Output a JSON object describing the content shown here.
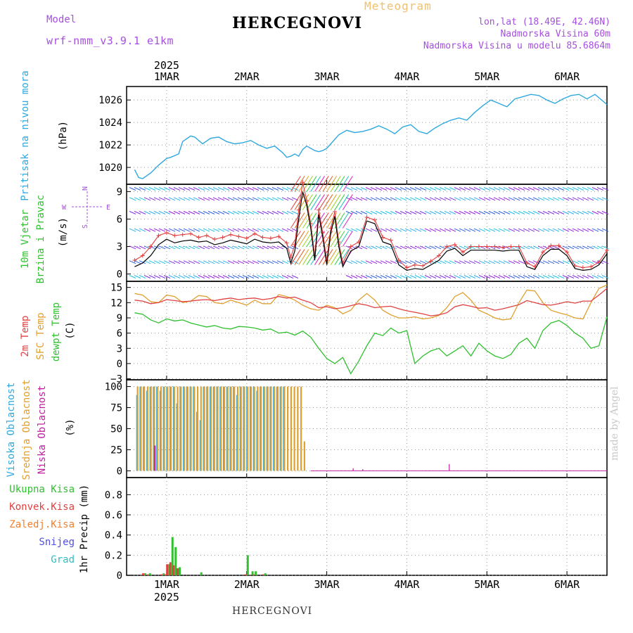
{
  "header": {
    "model_label": "Model",
    "model_name": "wrf-nmm_v3.9.1 e1km",
    "meteogram_label": "Meteogram",
    "station": "HERCEGNOVI",
    "lonlat": "lon,lat (18.49E, 42.46N)",
    "elevation": "Nadmorska Visina 60m",
    "model_elevation": "Nadmorska Visina u modelu 85.6864m",
    "footer_station": "HERCEGNOVI",
    "credit": "made by Angel"
  },
  "time_axis": {
    "year": "2025",
    "days": [
      "1MAR",
      "2MAR",
      "3MAR",
      "4MAR",
      "5MAR",
      "6MAR"
    ]
  },
  "colors": {
    "pressure": "#2fa8e0",
    "wind_speed": "#000000",
    "wind_gust": "#e04040",
    "temp_2m": "#e04040",
    "temp_sfc": "#e0a030",
    "dewpoint": "#30c030",
    "cloud_high": "#2fa8e0",
    "cloud_mid": "#e0a030",
    "cloud_low": "#c020a0",
    "precip_total": "#30c030",
    "precip_conv": "#e04040",
    "precip_frz": "#f08030",
    "snow": "#5050e0",
    "hail": "#30c0c0"
  },
  "chart_data": [
    {
      "type": "line",
      "panel": "pressure",
      "ylabel_lines": [
        "Pritisak na nivou mora",
        "(hPa)"
      ],
      "ylim": [
        1018.5,
        1027.2
      ],
      "yticks": [
        1020,
        1022,
        1024,
        1026
      ],
      "x_days": [
        0.6,
        0.65,
        0.7,
        0.8,
        0.9,
        1.0,
        1.05,
        1.15,
        1.2,
        1.3,
        1.35,
        1.45,
        1.55,
        1.65,
        1.75,
        1.85,
        1.95,
        2.05,
        2.15,
        2.25,
        2.35,
        2.45,
        2.5,
        2.55,
        2.6,
        2.65,
        2.7,
        2.75,
        2.8,
        2.85,
        2.9,
        2.95,
        3.0,
        3.05,
        3.15,
        3.25,
        3.35,
        3.45,
        3.55,
        3.65,
        3.75,
        3.85,
        3.95,
        4.05,
        4.15,
        4.25,
        4.35,
        4.45,
        4.55,
        4.65,
        4.75,
        4.85,
        4.95,
        5.05,
        5.15,
        5.25,
        5.35,
        5.45,
        5.55,
        5.65,
        5.75,
        5.85,
        5.95,
        6.05,
        6.15,
        6.25,
        6.35,
        6.5
      ],
      "y": [
        1019.8,
        1019.1,
        1019.0,
        1019.5,
        1020.2,
        1020.8,
        1020.9,
        1021.2,
        1022.3,
        1022.8,
        1022.7,
        1022.1,
        1022.6,
        1022.7,
        1022.3,
        1022.1,
        1022.2,
        1022.4,
        1022.0,
        1021.7,
        1021.9,
        1021.3,
        1020.9,
        1021.0,
        1021.2,
        1021.0,
        1021.6,
        1021.9,
        1021.7,
        1021.5,
        1021.4,
        1021.5,
        1021.7,
        1022.1,
        1022.9,
        1023.3,
        1023.1,
        1023.2,
        1023.4,
        1023.7,
        1023.4,
        1023.0,
        1023.6,
        1023.8,
        1023.2,
        1023.0,
        1023.5,
        1023.9,
        1024.2,
        1024.4,
        1024.2,
        1024.9,
        1025.5,
        1026.0,
        1025.7,
        1025.4,
        1026.1,
        1026.3,
        1026.5,
        1026.4,
        1026.0,
        1025.7,
        1026.1,
        1026.4,
        1026.5,
        1026.1,
        1026.5,
        1025.6
      ],
      "series_color": "#2fa8e0"
    },
    {
      "type": "line",
      "panel": "wind",
      "ylabel_lines": [
        "10m Vjetar",
        "Brzina i Pravac",
        "(m/s)"
      ],
      "direction_key": [
        "N",
        "S",
        "W",
        "E"
      ],
      "ylim": [
        -0.8,
        9.8
      ],
      "yticks": [
        0,
        3,
        6,
        9
      ],
      "x_days": [
        0.6,
        0.7,
        0.8,
        0.9,
        1.0,
        1.1,
        1.2,
        1.3,
        1.4,
        1.5,
        1.6,
        1.7,
        1.8,
        1.9,
        2.0,
        2.1,
        2.2,
        2.3,
        2.4,
        2.5,
        2.55,
        2.6,
        2.65,
        2.7,
        2.75,
        2.8,
        2.85,
        2.9,
        2.95,
        3.0,
        3.05,
        3.1,
        3.15,
        3.2,
        3.3,
        3.4,
        3.5,
        3.6,
        3.7,
        3.8,
        3.9,
        4.0,
        4.1,
        4.2,
        4.3,
        4.4,
        4.5,
        4.6,
        4.7,
        4.8,
        4.9,
        5.0,
        5.1,
        5.2,
        5.3,
        5.4,
        5.5,
        5.6,
        5.7,
        5.8,
        5.9,
        6.0,
        6.1,
        6.2,
        6.3,
        6.4,
        6.5
      ],
      "series": [
        {
          "name": "speed",
          "values": [
            0.8,
            1.2,
            2.0,
            3.2,
            3.8,
            3.4,
            3.6,
            3.7,
            3.5,
            3.6,
            3.2,
            3.4,
            3.7,
            3.5,
            3.3,
            3.8,
            3.5,
            3.4,
            3.5,
            2.8,
            1.2,
            2.5,
            6.0,
            9.0,
            7.5,
            5.0,
            1.5,
            6.5,
            4.0,
            1.0,
            4.5,
            6.3,
            3.0,
            0.8,
            2.5,
            3.0,
            5.8,
            5.5,
            3.5,
            3.2,
            1.0,
            0.4,
            0.6,
            0.5,
            1.0,
            1.5,
            2.5,
            2.8,
            2.0,
            2.6,
            2.6,
            2.6,
            2.6,
            2.5,
            2.6,
            2.6,
            0.8,
            0.5,
            2.0,
            2.7,
            2.7,
            2.0,
            0.6,
            0.4,
            0.5,
            1.0,
            2.2
          ]
        },
        {
          "name": "gust",
          "values": [
            1.5,
            2.0,
            3.0,
            4.2,
            4.5,
            4.2,
            4.3,
            4.4,
            4.0,
            4.2,
            3.8,
            4.0,
            4.3,
            4.1,
            3.9,
            4.4,
            4.0,
            3.9,
            4.1,
            3.4,
            1.8,
            3.2,
            7.0,
            10.0,
            8.0,
            5.5,
            2.0,
            7.0,
            4.5,
            1.5,
            5.0,
            6.8,
            3.5,
            1.2,
            3.0,
            3.5,
            6.2,
            5.9,
            4.0,
            3.7,
            1.5,
            0.7,
            1.0,
            0.9,
            1.4,
            2.0,
            3.0,
            3.2,
            2.4,
            3.0,
            3.0,
            3.0,
            3.0,
            2.9,
            3.0,
            3.0,
            1.2,
            0.8,
            2.4,
            3.1,
            3.1,
            2.4,
            0.9,
            0.7,
            0.8,
            1.3,
            2.6
          ]
        }
      ]
    },
    {
      "type": "line",
      "panel": "temperature",
      "ylabel_lines": [
        "2m Temp",
        "SFC Temp",
        "dewpt Temp",
        "(C)"
      ],
      "ylim": [
        -3.2,
        16.2
      ],
      "yticks": [
        -3,
        0,
        3,
        6,
        9,
        12,
        15
      ],
      "x_days": [
        0.6,
        0.7,
        0.8,
        0.9,
        1.0,
        1.1,
        1.2,
        1.3,
        1.4,
        1.5,
        1.6,
        1.7,
        1.8,
        1.9,
        2.0,
        2.1,
        2.2,
        2.3,
        2.4,
        2.5,
        2.6,
        2.7,
        2.8,
        2.9,
        3.0,
        3.1,
        3.2,
        3.3,
        3.4,
        3.5,
        3.6,
        3.7,
        3.8,
        3.9,
        4.0,
        4.1,
        4.2,
        4.3,
        4.4,
        4.5,
        4.6,
        4.7,
        4.8,
        4.9,
        5.0,
        5.1,
        5.2,
        5.3,
        5.4,
        5.5,
        5.6,
        5.7,
        5.8,
        5.9,
        6.0,
        6.1,
        6.2,
        6.3,
        6.4,
        6.5
      ],
      "series": [
        {
          "name": "2m",
          "values": [
            12.5,
            12.3,
            11.8,
            12.0,
            12.6,
            12.4,
            12.2,
            12.3,
            12.5,
            12.6,
            12.4,
            12.7,
            12.9,
            12.6,
            12.8,
            12.9,
            12.6,
            12.8,
            13.2,
            12.9,
            13.1,
            12.5,
            12.0,
            11.0,
            11.2,
            10.8,
            11.0,
            11.4,
            11.8,
            11.5,
            11.0,
            11.2,
            11.3,
            10.8,
            10.4,
            10.1,
            9.8,
            9.4,
            9.6,
            10.0,
            11.2,
            11.6,
            11.3,
            10.9,
            11.0,
            10.5,
            10.8,
            11.2,
            11.6,
            12.4,
            12.0,
            11.6,
            11.5,
            11.8,
            12.2,
            11.9,
            12.3,
            12.3,
            13.5,
            14.8
          ]
        },
        {
          "name": "sfc",
          "values": [
            13.8,
            13.5,
            12.2,
            12.0,
            13.5,
            13.2,
            12.0,
            12.3,
            13.4,
            13.2,
            12.0,
            11.8,
            12.5,
            12.0,
            11.5,
            12.5,
            11.8,
            11.8,
            13.6,
            13.2,
            12.5,
            11.5,
            10.8,
            10.5,
            11.5,
            11.0,
            9.8,
            10.5,
            12.5,
            13.8,
            12.5,
            10.5,
            9.6,
            9.0,
            9.0,
            9.2,
            8.8,
            9.0,
            9.5,
            11.0,
            13.2,
            14.0,
            12.5,
            10.5,
            9.8,
            9.0,
            8.6,
            8.8,
            12.0,
            14.5,
            14.3,
            12.0,
            10.5,
            10.0,
            9.6,
            9.0,
            8.8,
            12.0,
            14.8,
            15.5
          ]
        },
        {
          "name": "dewpt",
          "values": [
            10.0,
            9.7,
            8.6,
            8.0,
            8.8,
            8.4,
            8.6,
            8.0,
            7.6,
            7.2,
            7.5,
            7.0,
            6.8,
            7.3,
            7.2,
            7.0,
            6.6,
            6.8,
            6.0,
            6.2,
            5.6,
            6.4,
            5.2,
            3.0,
            1.0,
            0.0,
            1.2,
            -2.0,
            0.5,
            3.5,
            6.0,
            5.5,
            7.0,
            6.0,
            6.5,
            0.0,
            1.5,
            2.5,
            3.0,
            1.5,
            2.5,
            3.5,
            1.5,
            4.0,
            2.5,
            1.5,
            1.0,
            1.8,
            4.0,
            5.0,
            3.0,
            6.5,
            8.0,
            8.5,
            7.5,
            6.0,
            5.0,
            3.0,
            3.5,
            9.2
          ]
        }
      ]
    },
    {
      "type": "bar",
      "panel": "cloud",
      "ylabel_lines": [
        "Visoka Oblacnost",
        "Srednja Oblacnost",
        "Niska Oblacnost",
        "(%)"
      ],
      "ylim": [
        -8,
        108
      ],
      "yticks": [
        0,
        25,
        50,
        75,
        100
      ],
      "bars_start_day": 0.62,
      "bars_step_day": 0.04167,
      "series": [
        {
          "name": "high",
          "values": [
            90,
            100,
            100,
            95,
            100,
            100,
            100,
            95,
            100,
            100,
            100,
            100,
            80,
            100,
            100,
            100,
            100,
            100,
            70,
            60,
            100,
            100,
            100,
            100,
            100,
            100,
            100,
            100,
            100,
            100,
            90,
            100,
            100,
            100,
            100,
            100,
            95,
            100,
            100,
            100,
            100,
            100,
            100,
            100,
            100,
            0,
            0,
            0,
            0,
            0,
            0
          ]
        },
        {
          "name": "mid",
          "values": [
            100,
            100,
            100,
            100,
            100,
            100,
            100,
            100,
            100,
            100,
            100,
            100,
            100,
            100,
            100,
            100,
            100,
            100,
            100,
            100,
            100,
            100,
            100,
            100,
            100,
            100,
            100,
            100,
            100,
            100,
            100,
            100,
            100,
            100,
            100,
            100,
            100,
            100,
            100,
            100,
            100,
            100,
            100,
            100,
            100,
            100,
            100,
            100,
            100,
            100,
            35
          ]
        },
        {
          "name": "low",
          "values": [
            0,
            0,
            0,
            0,
            0,
            30,
            0,
            0,
            0,
            0,
            0,
            0,
            0,
            0,
            0,
            0,
            0,
            0,
            0,
            0,
            0,
            0,
            0,
            0,
            0,
            0,
            0,
            0,
            0,
            0,
            0,
            0,
            0,
            0,
            0,
            0,
            0,
            0,
            0,
            0,
            0,
            0,
            0,
            0,
            0,
            0,
            0,
            0,
            0,
            0,
            0
          ]
        }
      ],
      "low_spikes": [
        {
          "day": 3.33,
          "value": 3
        },
        {
          "day": 3.45,
          "value": 2
        },
        {
          "day": 4.53,
          "value": 8
        }
      ]
    },
    {
      "type": "bar",
      "panel": "precip",
      "ylabel_lines": [
        "1hr Precip (mm)"
      ],
      "legend": [
        "Ukupna Kisa",
        "Konvek.Kisa",
        "Zaledj.Kisa",
        "Snijeg",
        "Grad"
      ],
      "ylim": [
        0,
        0.97
      ],
      "yticks": [
        0,
        0.2,
        0.4,
        0.6,
        0.8
      ],
      "x_days": [
        0.72,
        0.78,
        0.95,
        1.0,
        1.02,
        1.06,
        1.1,
        1.15,
        1.42,
        2.0,
        2.06,
        2.1,
        2.22
      ],
      "series": [
        {
          "name": "total",
          "values": [
            0.02,
            0.02,
            0.02,
            0.01,
            0.11,
            0.38,
            0.28,
            0.08,
            0.03,
            0.2,
            0.04,
            0.04,
            0.02
          ]
        },
        {
          "name": "conv",
          "values": [
            0.02,
            0.01,
            0.01,
            0.01,
            0.11,
            0.13,
            0.1,
            0.07,
            0.0,
            0.01,
            0.0,
            0.01,
            0.01
          ]
        }
      ]
    }
  ]
}
